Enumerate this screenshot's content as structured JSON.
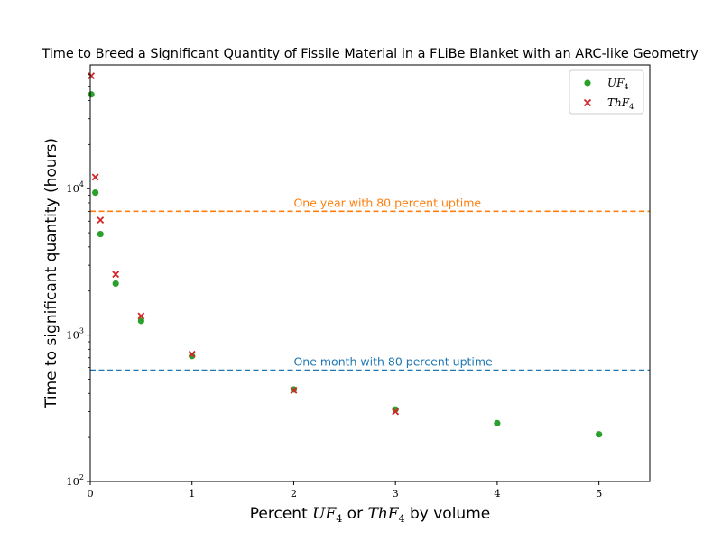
{
  "chart_data": {
    "type": "scatter",
    "title": "Time to Breed a Significant Quantity of Fissile Material in a FLiBe Blanket with an ARC-like Geometry",
    "xlabel": {
      "pre": "Percent ",
      "a": "UF",
      "a_sub": "4",
      "mid": " or ",
      "b": "ThF",
      "b_sub": "4",
      "post": " by volume"
    },
    "ylabel": "Time to significant quantity (hours)",
    "xlim": [
      0,
      5.5
    ],
    "ylim": [
      100,
      70000
    ],
    "yscale": "log",
    "x_ticks": [
      {
        "value": 0,
        "label": "0"
      },
      {
        "value": 1,
        "label": "1"
      },
      {
        "value": 2,
        "label": "2"
      },
      {
        "value": 3,
        "label": "3"
      },
      {
        "value": 4,
        "label": "4"
      },
      {
        "value": 5,
        "label": "5"
      }
    ],
    "y_ticks": [
      {
        "value": 100,
        "base": "10",
        "exp": "2"
      },
      {
        "value": 1000,
        "base": "10",
        "exp": "3"
      },
      {
        "value": 10000,
        "base": "10",
        "exp": "4"
      }
    ],
    "legend_position": "top-right",
    "series": [
      {
        "name": "UF",
        "name_sub": "4",
        "marker": "circle",
        "color": "#2ca02c",
        "points": [
          [
            0.01,
            44000
          ],
          [
            0.05,
            9400
          ],
          [
            0.1,
            4900
          ],
          [
            0.25,
            2250
          ],
          [
            0.5,
            1250
          ],
          [
            1,
            720
          ],
          [
            2,
            425
          ],
          [
            3,
            310
          ],
          [
            4,
            250
          ],
          [
            5,
            210
          ]
        ]
      },
      {
        "name": "ThF",
        "name_sub": "4",
        "marker": "x",
        "color": "#d62728",
        "points": [
          [
            0.01,
            59000
          ],
          [
            0.05,
            12000
          ],
          [
            0.1,
            6100
          ],
          [
            0.25,
            2600
          ],
          [
            0.5,
            1350
          ],
          [
            1,
            740
          ],
          [
            2,
            420
          ],
          [
            3,
            300
          ]
        ]
      }
    ],
    "reference_lines": [
      {
        "y": 7008,
        "label": "One year with 80 percent uptime",
        "color": "#ff7f0e",
        "label_x": 2.0
      },
      {
        "y": 576,
        "label": "One month with 80 percent uptime",
        "color": "#1f77b4",
        "label_x": 2.0
      }
    ]
  }
}
